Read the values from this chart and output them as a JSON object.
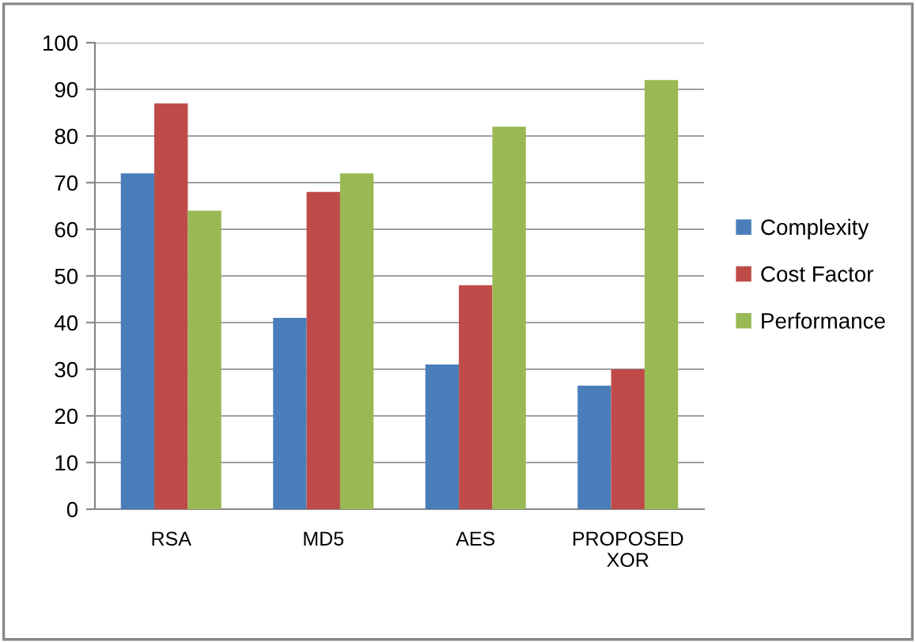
{
  "chart_data": {
    "type": "bar",
    "categories": [
      "RSA",
      "MD5",
      "AES",
      "PROPOSED\nXOR"
    ],
    "series": [
      {
        "name": "Complexity",
        "color": "#4a7ebb",
        "values": [
          72,
          41,
          31,
          26.5
        ]
      },
      {
        "name": "Cost Factor",
        "color": "#be4b48",
        "values": [
          87,
          68,
          48,
          30
        ]
      },
      {
        "name": "Performance",
        "color": "#98b954",
        "values": [
          64,
          72,
          82,
          92
        ]
      }
    ],
    "ylim": [
      0,
      100
    ],
    "yticks": [
      0,
      10,
      20,
      30,
      40,
      50,
      60,
      70,
      80,
      90,
      100
    ],
    "grid": "y",
    "legend": "right"
  }
}
